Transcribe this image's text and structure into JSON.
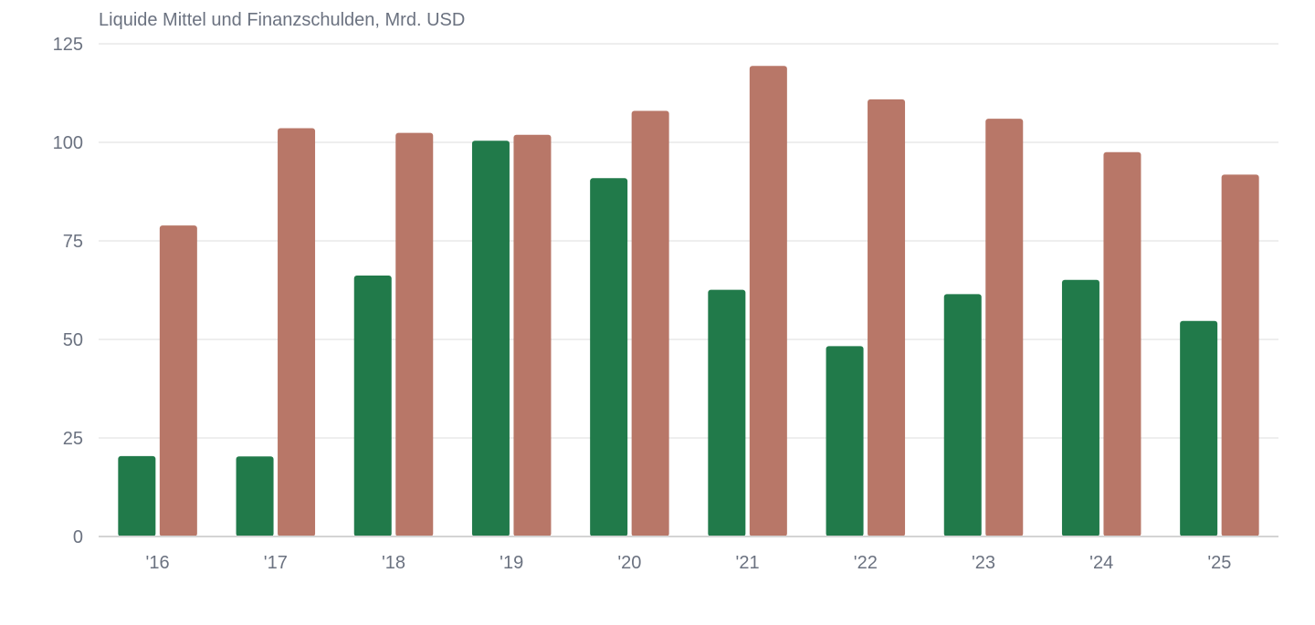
{
  "chart_data": {
    "type": "bar",
    "title": "Liquide Mittel und Finanzschulden, Mrd. USD",
    "xlabel": "",
    "ylabel": "",
    "categories": [
      "'16",
      "'17",
      "'18",
      "'19",
      "'20",
      "'21",
      "'22",
      "'23",
      "'24",
      "'25"
    ],
    "series": [
      {
        "color": "#217a4a",
        "values": [
          20.4,
          20.3,
          66.2,
          100.4,
          90.9,
          62.6,
          48.3,
          61.5,
          65.1,
          54.7
        ]
      },
      {
        "color": "#b87768",
        "values": [
          78.9,
          103.6,
          102.4,
          101.9,
          108.0,
          119.4,
          110.9,
          106.0,
          97.5,
          91.8
        ]
      }
    ],
    "ylim": [
      0,
      125
    ],
    "yticks": [
      0,
      25,
      50,
      75,
      100,
      125
    ],
    "grid": true,
    "legend": "none"
  },
  "colors": {
    "grid": "#e8e8e8",
    "axis": "#d4d4d4",
    "tick_text": "#6b7280"
  }
}
